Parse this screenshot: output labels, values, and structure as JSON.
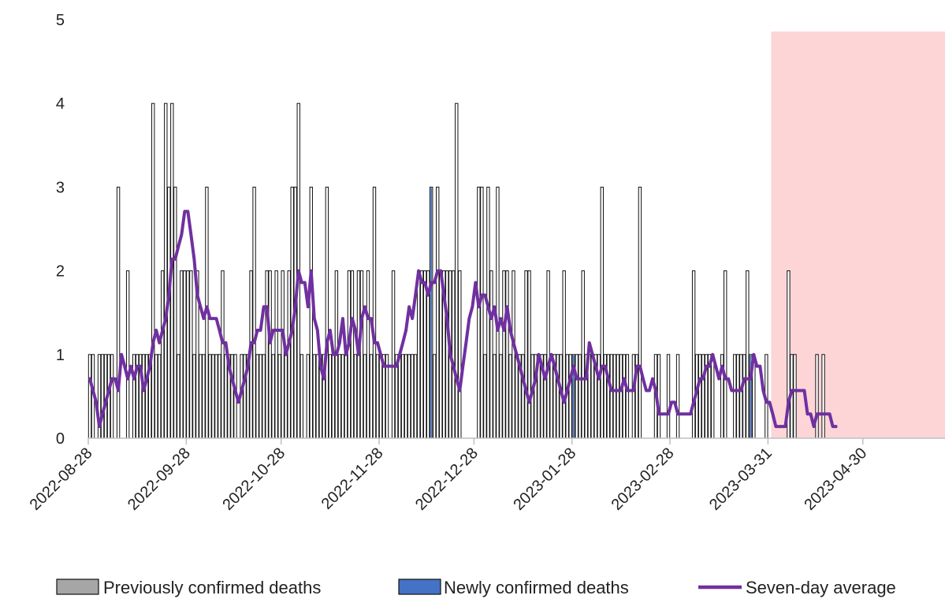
{
  "chart_data": {
    "type": "bar",
    "x_axis": {
      "type": "date",
      "start": "2022-08-28",
      "end": "2023-05-26",
      "tick_labels": [
        "2022-08-28",
        "2022-09-28",
        "2022-10-28",
        "2022-11-28",
        "2022-12-28",
        "2023-01-28",
        "2023-02-28",
        "2023-03-31",
        "2023-04-30"
      ]
    },
    "y_axis": {
      "min": 0,
      "max": 5,
      "ticks": [
        0,
        1,
        2,
        3,
        4,
        5
      ]
    },
    "grid": false,
    "shaded_region": {
      "start": "2023-04-01",
      "end": "2023-05-26",
      "color": "#fdd5d7"
    },
    "colors": {
      "previous": "#a6a6a6",
      "new": "#4472c4",
      "average": "#7030a0"
    },
    "series": [
      {
        "name": "Previously confirmed deaths",
        "kind": "bar",
        "color": "#a6a6a6",
        "daily_counts_from_start": [
          1,
          1,
          0,
          1,
          1,
          1,
          1,
          1,
          0,
          3,
          0,
          0,
          2,
          0,
          1,
          1,
          1,
          1,
          1,
          1,
          4,
          1,
          1,
          2,
          4,
          3,
          4,
          3,
          1,
          2,
          2,
          2,
          2,
          1,
          2,
          1,
          1,
          3,
          1,
          1,
          1,
          1,
          2,
          1,
          1,
          1,
          1,
          0,
          1,
          1,
          1,
          2,
          3,
          1,
          1,
          1,
          2,
          2,
          1,
          2,
          1,
          2,
          1,
          2,
          3,
          3,
          4,
          1,
          0,
          1,
          3,
          1,
          1,
          1,
          1,
          3,
          1,
          1,
          2,
          1,
          1,
          1,
          2,
          2,
          1,
          2,
          2,
          1,
          2,
          1,
          3,
          1,
          1,
          1,
          1,
          0,
          2,
          1,
          1,
          1,
          1,
          1,
          1,
          1,
          2,
          2,
          2,
          2,
          3,
          1,
          3,
          2,
          2,
          2,
          2,
          2,
          4,
          2,
          0,
          0,
          0,
          0,
          0,
          3,
          3,
          1,
          3,
          2,
          1,
          3,
          1,
          2,
          2,
          1,
          2,
          1,
          1,
          1,
          2,
          2,
          1,
          1,
          1,
          1,
          1,
          2,
          1,
          1,
          1,
          1,
          2,
          1,
          1,
          1,
          1,
          1,
          2,
          1,
          1,
          1,
          1,
          1,
          3,
          1,
          1,
          1,
          1,
          1,
          1,
          1,
          1,
          0,
          1,
          1,
          3,
          0,
          0,
          0,
          0,
          1,
          1,
          0,
          0,
          1,
          0,
          0,
          1,
          0,
          0,
          0,
          0,
          2,
          1,
          1,
          1,
          1,
          1,
          1,
          0,
          0,
          1,
          2,
          0,
          0,
          1,
          1,
          1,
          1,
          2,
          1,
          1,
          0,
          0,
          0,
          1,
          0,
          0,
          0,
          0,
          0,
          0,
          2,
          1,
          1,
          0,
          0,
          0,
          0,
          0,
          0,
          1,
          0,
          1,
          0
        ],
        "note_colors_new_days": [
          103,
          153,
          198,
          209
        ]
      },
      {
        "name": "Newly confirmed deaths",
        "kind": "bar",
        "color": "#4472c4",
        "days_with_new": [
          95,
          108,
          153,
          198,
          209,
          215
        ]
      },
      {
        "name": "Seven-day average",
        "kind": "line",
        "color": "#7030a0",
        "values_from_start": [
          0.71,
          0.57,
          0.43,
          0.14,
          0.29,
          0.43,
          0.57,
          0.71,
          0.71,
          0.57,
          1.0,
          0.86,
          0.71,
          0.86,
          0.71,
          0.86,
          0.86,
          0.57,
          0.71,
          0.86,
          1.14,
          1.29,
          1.14,
          1.29,
          1.43,
          1.71,
          2.14,
          2.14,
          2.29,
          2.43,
          2.71,
          2.71,
          2.43,
          2.14,
          1.71,
          1.57,
          1.43,
          1.57,
          1.43,
          1.43,
          1.43,
          1.29,
          1.14,
          1.14,
          0.86,
          0.71,
          0.57,
          0.43,
          0.57,
          0.71,
          0.86,
          1.14,
          1.14,
          1.29,
          1.29,
          1.57,
          1.57,
          1.14,
          1.29,
          1.29,
          1.29,
          1.29,
          1.0,
          1.14,
          1.29,
          1.57,
          2.0,
          1.86,
          1.86,
          1.57,
          2.0,
          1.43,
          1.29,
          0.86,
          0.71,
          1.14,
          1.29,
          1.0,
          1.0,
          1.14,
          1.43,
          1.0,
          1.14,
          1.43,
          1.29,
          1.0,
          1.43,
          1.57,
          1.43,
          1.43,
          1.14,
          1.14,
          1.0,
          0.86,
          0.86,
          0.86,
          0.86,
          0.86,
          1.0,
          1.14,
          1.29,
          1.57,
          1.43,
          1.71,
          2.0,
          1.86,
          1.86,
          1.71,
          1.86,
          1.86,
          2.0,
          2.0,
          1.71,
          1.43,
          1.0,
          0.86,
          0.71,
          0.57,
          0.86,
          1.14,
          1.43,
          1.57,
          1.86,
          1.57,
          1.71,
          1.71,
          1.57,
          1.43,
          1.57,
          1.29,
          1.43,
          1.29,
          1.57,
          1.29,
          1.14,
          1.0,
          0.86,
          0.71,
          0.57,
          0.43,
          0.57,
          0.71,
          1.0,
          0.86,
          0.71,
          0.86,
          1.0,
          0.86,
          0.71,
          0.57,
          0.43,
          0.57,
          0.71,
          0.86,
          0.71,
          0.71,
          0.71,
          0.71,
          1.14,
          1.0,
          0.86,
          0.71,
          0.86,
          0.86,
          0.71,
          0.57,
          0.57,
          0.57,
          0.57,
          0.71,
          0.57,
          0.57,
          0.57,
          0.86,
          0.86,
          0.71,
          0.57,
          0.57,
          0.71,
          0.57,
          0.29,
          0.29,
          0.29,
          0.29,
          0.43,
          0.43,
          0.29,
          0.29,
          0.29,
          0.29,
          0.29,
          0.43,
          0.57,
          0.71,
          0.71,
          0.86,
          0.86,
          1.0,
          0.86,
          0.71,
          0.86,
          0.71,
          0.71,
          0.57,
          0.57,
          0.57,
          0.57,
          0.71,
          0.71,
          0.71,
          1.0,
          0.86,
          0.86,
          0.57,
          0.43,
          0.43,
          0.29,
          0.14,
          0.14,
          0.14,
          0.14,
          0.43,
          0.57,
          0.57,
          0.57,
          0.57,
          0.57,
          0.29,
          0.29,
          0.14,
          0.29,
          0.29,
          0.29,
          0.29,
          0.29,
          0.14,
          0.14
        ]
      }
    ],
    "legend": {
      "placement": "bottom",
      "entries": [
        {
          "label": "Previously confirmed deaths",
          "color": "#a6a6a6",
          "shape": "box"
        },
        {
          "label": "Newly confirmed deaths",
          "color": "#4472c4",
          "shape": "box"
        },
        {
          "label": "Seven-day average",
          "color": "#7030a0",
          "shape": "line"
        }
      ]
    }
  }
}
